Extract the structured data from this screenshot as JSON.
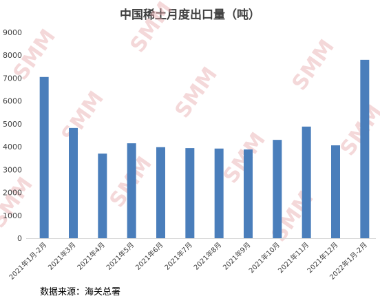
{
  "chart_data": {
    "type": "bar",
    "title": "中国稀土月度出口量（吨）",
    "categories": [
      "2021年1月-2月",
      "2021年3月",
      "2021年4月",
      "2021年5月",
      "2021年6月",
      "2021年7月",
      "2021年8月",
      "2021年9月",
      "2021年10月",
      "2021年11月",
      "2021年12月",
      "2022年1月-2月"
    ],
    "values": [
      7050,
      4820,
      3700,
      4150,
      3980,
      3940,
      3920,
      3880,
      4300,
      4880,
      4060,
      7800
    ],
    "ylim": [
      0,
      9000
    ],
    "yticks": [
      "0",
      "1000",
      "2000",
      "3000",
      "4000",
      "5000",
      "6000",
      "7000",
      "8000",
      "9000"
    ],
    "xlabel": "",
    "ylabel": "",
    "grid": false,
    "bar_color": "#4a7ebb",
    "axis_color": "#d9d9d9",
    "watermark": "SMM"
  },
  "source": "数据来源：海关总署"
}
